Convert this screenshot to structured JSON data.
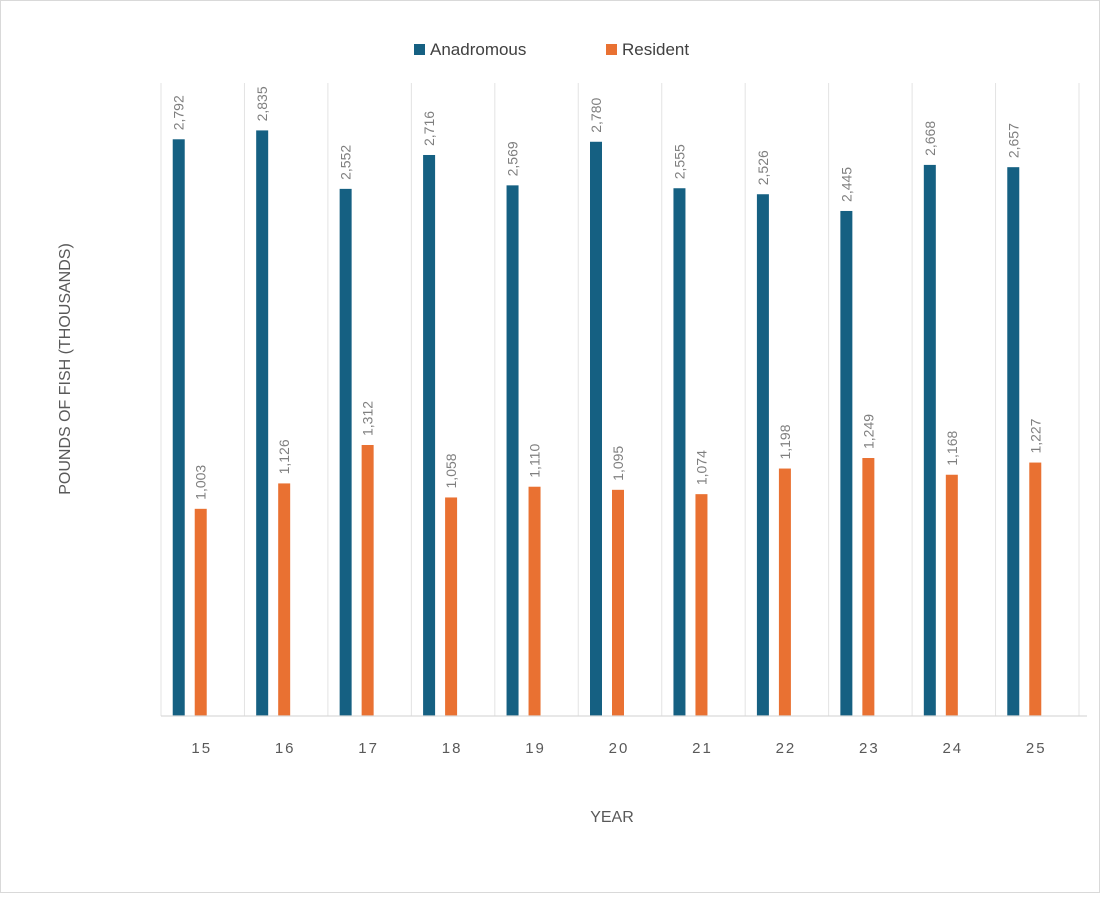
{
  "chart_data": {
    "type": "bar",
    "title": "",
    "xlabel": "YEAR",
    "ylabel": "POUNDS OF FISH (THOUSANDS)",
    "categories": [
      "15",
      "16",
      "17",
      "18",
      "19",
      "20",
      "21",
      "22",
      "23",
      "24",
      "25"
    ],
    "series": [
      {
        "name": "Anadromous",
        "color": "#156082",
        "values": [
          2792,
          2835,
          2552,
          2716,
          2569,
          2780,
          2555,
          2526,
          2445,
          2668,
          2657
        ],
        "labels": [
          "2,792",
          "2,835",
          "2,552",
          "2,716",
          "2,569",
          "2,780",
          "2,555",
          "2,526",
          "2,445",
          "2,668",
          "2,657"
        ]
      },
      {
        "name": "Resident",
        "color": "#E97132",
        "values": [
          1003,
          1126,
          1312,
          1058,
          1110,
          1095,
          1074,
          1198,
          1249,
          1168,
          1227
        ],
        "labels": [
          "1,003",
          "1,126",
          "1,312",
          "1,058",
          "1,110",
          "1,095",
          "1,074",
          "1,198",
          "1,249",
          "1,168",
          "1,227"
        ]
      }
    ],
    "ylim": [
      0,
      3050
    ],
    "grid": "vertical category separators",
    "legend_position": "top",
    "data_labels": "rotated, above bars",
    "y_axis_tick_labels": false
  }
}
